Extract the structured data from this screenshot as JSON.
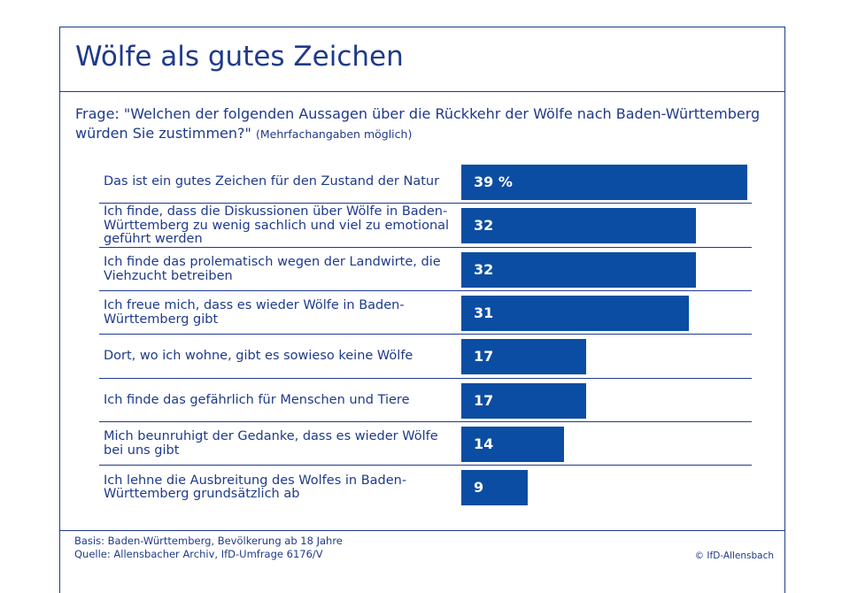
{
  "title": "Wölfe als gutes Zeichen",
  "question": {
    "main": "Frage: \"Welchen der folgenden Aussagen über die Rückkehr der Wölfe nach Baden-Württem­berg würden Sie zustimmen?\"",
    "note": "(Mehrfachangaben möglich)"
  },
  "chart_data": {
    "type": "bar",
    "orientation": "horizontal",
    "unit": "%",
    "categories": [
      "Das ist ein gutes Zeichen für den Zustand der Natur",
      "Ich finde, dass die Diskussionen über Wölfe in Baden-Württemberg zu wenig sachlich und viel zu emotional geführt werden",
      "Ich finde das prolematisch wegen der Landwirte, die Viehzucht betreiben",
      "Ich freue mich, dass es wieder Wölfe in Baden-Württemberg gibt",
      "Dort, wo ich wohne, gibt es sowieso keine Wölfe",
      "Ich finde das gefährlich für Menschen und Tiere",
      "Mich beunruhigt der Gedanke, dass es wieder Wölfe bei uns gibt",
      "Ich lehne die Ausbreitung des Wolfes in Baden-Württemberg grundsätzlich ab"
    ],
    "values": [
      39,
      32,
      32,
      31,
      17,
      17,
      14,
      9
    ],
    "value_labels": [
      "39 %",
      "32",
      "32",
      "31",
      "17",
      "17",
      "14",
      "9"
    ],
    "bar_color": "#0b4da2"
  },
  "footer": {
    "basis": "Basis: Baden-Württemberg, Bevölkerung ab 18 Jahre",
    "source": "Quelle: Allensbacher Archiv, IfD-Umfrage 6176/V",
    "copyright": "© IfD-Allensbach"
  }
}
